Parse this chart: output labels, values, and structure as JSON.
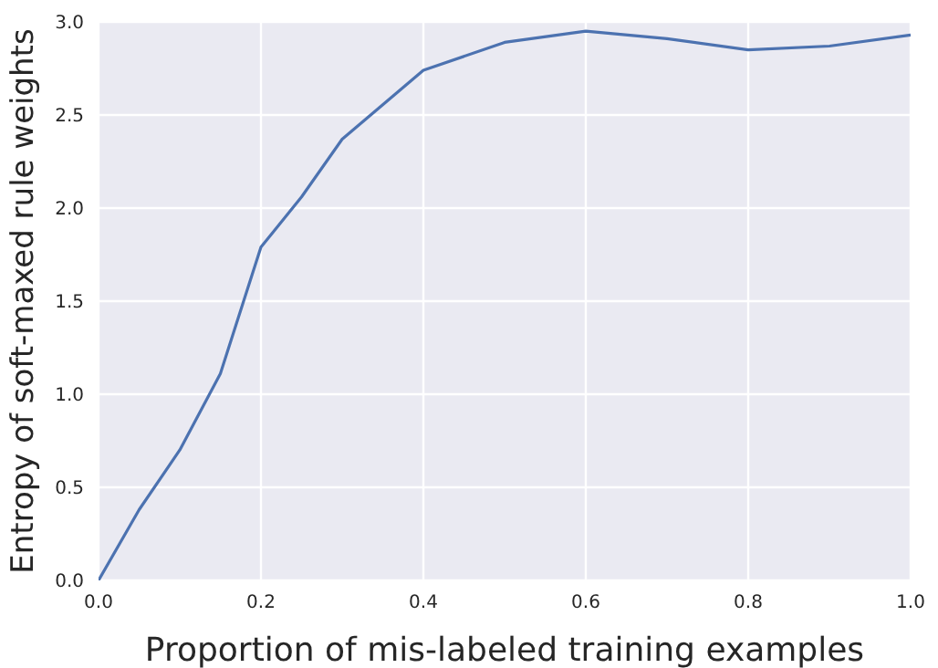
{
  "chart_data": {
    "type": "line",
    "xlabel": "Proportion of mis-labeled training examples",
    "ylabel": "Entropy of soft-maxed rule weights",
    "x": [
      0,
      0.05,
      0.1,
      0.15,
      0.2,
      0.25,
      0.3,
      0.4,
      0.5,
      0.6,
      0.7,
      0.8,
      0.9,
      1.0
    ],
    "series": [
      {
        "color": "#4c72b0",
        "values": [
          0,
          0.38,
          0.7,
          1.11,
          1.79,
          2.06,
          2.37,
          2.74,
          2.89,
          2.95,
          2.91,
          2.85,
          2.87,
          2.93
        ]
      }
    ],
    "xlim": [
      0,
      1.0
    ],
    "xticks": [
      {
        "value": 0,
        "label": "0.0"
      },
      0.2,
      0.4,
      0.6,
      0.8,
      {
        "value": 1.0,
        "label": "1.0"
      }
    ],
    "ylim": [
      0,
      3.0
    ],
    "yticks": [
      {
        "value": 0,
        "label": "0.0"
      },
      0.5,
      {
        "value": 1.0,
        "label": "1.0"
      },
      1.5,
      {
        "value": 2.0,
        "label": "2.0"
      },
      2.5,
      {
        "value": 3.0,
        "label": "3.0"
      }
    ],
    "grid": true,
    "marker": "none",
    "line_style": "solid"
  }
}
